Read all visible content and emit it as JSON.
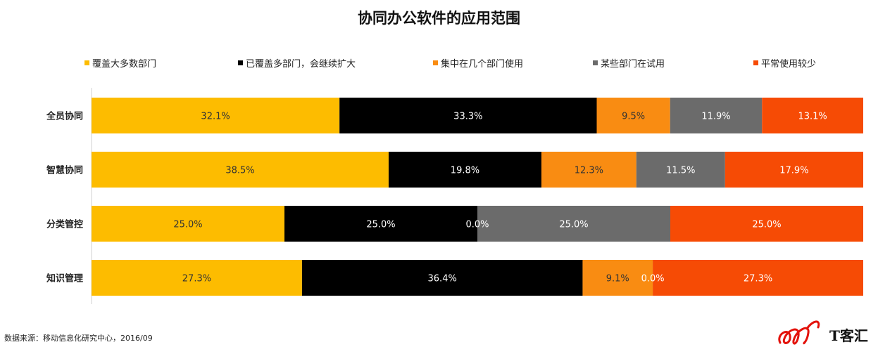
{
  "chart_data": {
    "type": "bar",
    "orientation": "horizontal",
    "stacked": true,
    "normalized": true,
    "title": "协同办公软件的应用范围",
    "categories": [
      "全员协同",
      "智慧协同",
      "分类管控",
      "知识管理"
    ],
    "series": [
      {
        "name": "覆盖大多数部门",
        "color": "#FDBC00",
        "values": [
          32.1,
          38.5,
          25.0,
          27.3
        ],
        "labels": [
          "32.1%",
          "38.5%",
          "25.0%",
          "27.3%"
        ]
      },
      {
        "name": "已覆盖多部门，会继续扩大",
        "color": "#000000",
        "values": [
          33.3,
          19.8,
          25.0,
          36.4
        ],
        "labels": [
          "33.3%",
          "19.8%",
          "25.0%",
          "36.4%"
        ]
      },
      {
        "name": "集中在几个部门使用",
        "color": "#F98C12",
        "values": [
          9.5,
          12.3,
          0.0,
          9.1
        ],
        "labels": [
          "9.5%",
          "12.3%",
          "0.0%",
          "9.1%"
        ]
      },
      {
        "name": "某些部门在试用",
        "color": "#6B6B6B",
        "values": [
          11.9,
          11.5,
          25.0,
          0.0
        ],
        "labels": [
          "11.9%",
          "11.5%",
          "25.0%",
          "0.0%"
        ]
      },
      {
        "name": "平常使用较少",
        "color": "#F64B05",
        "values": [
          13.1,
          17.9,
          25.0,
          27.3
        ],
        "labels": [
          "13.1%",
          "17.9%",
          "25.0%",
          "27.3%"
        ]
      }
    ],
    "legend_position": "top",
    "grid": false
  },
  "source_note": "数据来源：移动信息化研究中心，2016/09",
  "logo": {
    "text": "T客汇",
    "accent": "#E3120B"
  }
}
